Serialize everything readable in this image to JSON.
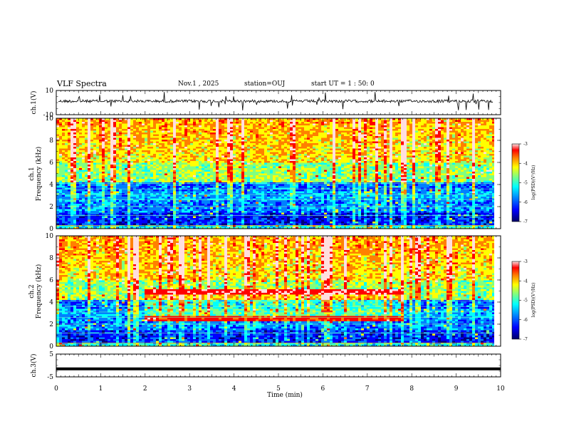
{
  "header": {
    "title": "VLF Spectra",
    "date": "Nov.1 , 2025",
    "station": "station=OUJ",
    "start": "start UT = 1 : 50: 0"
  },
  "colors": {
    "scale": [
      "#00007a",
      "#0000ff",
      "#0080ff",
      "#00ffff",
      "#80ff80",
      "#ffff00",
      "#ff8000",
      "#ff0000",
      "#ffdede"
    ]
  },
  "chart_data": [
    {
      "type": "line",
      "ylabel": "ch.1(V)",
      "ylim": [
        -10,
        10
      ],
      "yticks": [
        "10",
        "-10"
      ],
      "x_range": [
        0,
        10
      ],
      "series_description": "waveform near 0 V with noise spikes"
    },
    {
      "type": "heatmap",
      "ylabel_lines": [
        "ch.1",
        "Frequency (kHz)"
      ],
      "ylim": [
        0,
        10
      ],
      "yticks": [
        "0",
        "2",
        "4",
        "6",
        "8",
        "10"
      ],
      "xlim": [
        0,
        10
      ],
      "colorbar": {
        "label": "log(PSD)(V²/Hz)",
        "range": [
          -7,
          -3
        ],
        "ticks": [
          "-3",
          "-4",
          "-5",
          "-6",
          "-7"
        ]
      }
    },
    {
      "type": "heatmap",
      "ylabel_lines": [
        "ch.2",
        "Frequency (kHz)"
      ],
      "ylim": [
        0,
        10
      ],
      "yticks": [
        "0",
        "2",
        "4",
        "6",
        "8",
        "10"
      ],
      "xlim": [
        0,
        10
      ],
      "colorbar": {
        "label": "log(PSD)(V²/Hz)",
        "range": [
          -7,
          -3
        ],
        "ticks": [
          "-3",
          "-4",
          "-5",
          "-6",
          "-7"
        ]
      }
    },
    {
      "type": "line",
      "ylabel": "ch.3(V)",
      "ylim": [
        -5,
        5
      ],
      "yticks": [
        "5",
        "-5"
      ],
      "values_note": "flat at -1.5 V",
      "level": -1.5
    }
  ],
  "xaxis": {
    "label": "Time (min)",
    "ticks": [
      "0",
      "1",
      "2",
      "3",
      "4",
      "5",
      "6",
      "7",
      "8",
      "9",
      "10"
    ],
    "range": [
      0,
      10
    ]
  }
}
